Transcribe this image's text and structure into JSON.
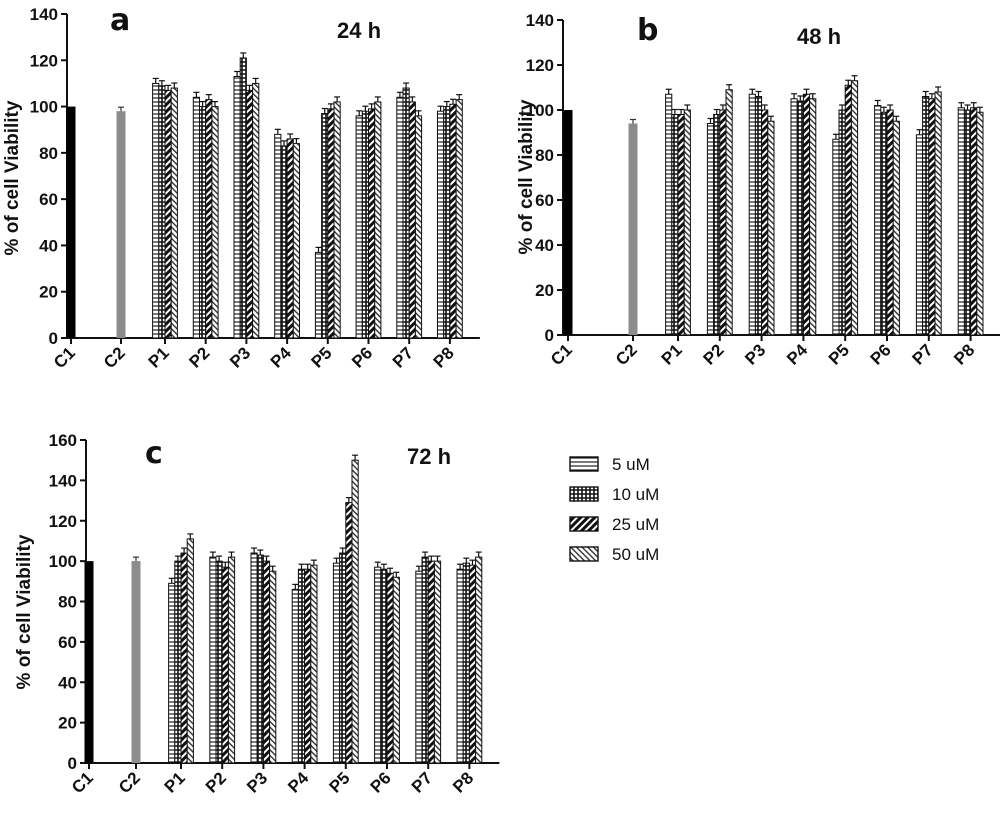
{
  "figure": {
    "legend": [
      {
        "label": "5 uM",
        "pattern": "horizontal-lines"
      },
      {
        "label": "10 uM",
        "pattern": "grid"
      },
      {
        "label": "25 uM",
        "pattern": "dense-diagonal"
      },
      {
        "label": "50 uM",
        "pattern": "fine-diagonal"
      }
    ],
    "colors": {
      "control_c1": "#000000",
      "control_c2": "#8c8c8c",
      "bar_stroke": "#111111"
    }
  },
  "chart_data": [
    {
      "type": "bar",
      "panel_label": "a",
      "title": "24 h",
      "ylabel": "% of cell Viability",
      "ylim": [
        0,
        140
      ],
      "yticks": [
        0,
        20,
        40,
        60,
        80,
        100,
        120,
        140
      ],
      "controls": [
        {
          "category": "C1",
          "value": 100
        },
        {
          "category": "C2",
          "value": 98
        }
      ],
      "categories": [
        "P1",
        "P2",
        "P3",
        "P4",
        "P5",
        "P6",
        "P7",
        "P8"
      ],
      "series": [
        {
          "name": "5 uM",
          "values": [
            110,
            104,
            113,
            88,
            37,
            96,
            104,
            98
          ]
        },
        {
          "name": "10 uM",
          "values": [
            109,
            100,
            121,
            83,
            97,
            98,
            108,
            100
          ]
        },
        {
          "name": "25 uM",
          "values": [
            107,
            103,
            107,
            86,
            99,
            99,
            102,
            101
          ]
        },
        {
          "name": "50 uM",
          "values": [
            108,
            100,
            110,
            84,
            102,
            102,
            96,
            103
          ]
        }
      ]
    },
    {
      "type": "bar",
      "panel_label": "b",
      "title": "48 h",
      "ylabel": "% of cell Viability",
      "ylim": [
        0,
        140
      ],
      "yticks": [
        0,
        20,
        40,
        60,
        80,
        100,
        120,
        140
      ],
      "controls": [
        {
          "category": "C1",
          "value": 100
        },
        {
          "category": "C2",
          "value": 94
        }
      ],
      "categories": [
        "P1",
        "P2",
        "P3",
        "P4",
        "P5",
        "P6",
        "P7",
        "P8"
      ],
      "series": [
        {
          "name": "5 uM",
          "values": [
            107,
            94,
            107,
            105,
            87,
            102,
            89,
            101
          ]
        },
        {
          "name": "10 uM",
          "values": [
            98,
            98,
            106,
            104,
            100,
            99,
            106,
            100
          ]
        },
        {
          "name": "25 uM",
          "values": [
            98,
            100,
            100,
            107,
            111,
            100,
            105,
            101
          ]
        },
        {
          "name": "50 uM",
          "values": [
            100,
            109,
            95,
            105,
            113,
            95,
            108,
            99
          ]
        }
      ]
    },
    {
      "type": "bar",
      "panel_label": "c",
      "title": "72 h",
      "ylabel": "% of cell Viability",
      "ylim": [
        0,
        160
      ],
      "yticks": [
        0,
        20,
        40,
        60,
        80,
        100,
        120,
        140,
        160
      ],
      "controls": [
        {
          "category": "C1",
          "value": 100
        },
        {
          "category": "C2",
          "value": 100
        }
      ],
      "categories": [
        "P1",
        "P2",
        "P3",
        "P4",
        "P5",
        "P6",
        "P7",
        "P8"
      ],
      "series": [
        {
          "name": "5 uM",
          "values": [
            89,
            102,
            104,
            86,
            99,
            97,
            95,
            96
          ]
        },
        {
          "name": "10 uM",
          "values": [
            100,
            100,
            103,
            96,
            104,
            96,
            102,
            99
          ]
        },
        {
          "name": "25 uM",
          "values": [
            104,
            97,
            100,
            96,
            129,
            94,
            100,
            98
          ]
        },
        {
          "name": "50 uM",
          "values": [
            111,
            102,
            95,
            98,
            150,
            92,
            100,
            102
          ]
        }
      ]
    }
  ]
}
